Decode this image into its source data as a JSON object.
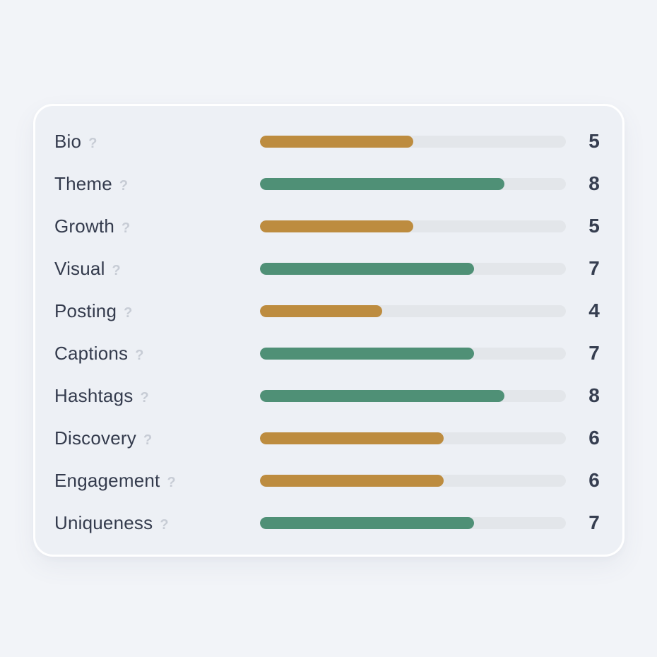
{
  "card": {
    "help_icon_glyph": "?",
    "max_score": 10,
    "rows": [
      {
        "label": "Bio",
        "score": "5",
        "value": 5,
        "status": "warn"
      },
      {
        "label": "Theme",
        "score": "8",
        "value": 8,
        "status": "good"
      },
      {
        "label": "Growth",
        "score": "5",
        "value": 5,
        "status": "warn"
      },
      {
        "label": "Visual",
        "score": "7",
        "value": 7,
        "status": "good"
      },
      {
        "label": "Posting",
        "score": "4",
        "value": 4,
        "status": "warn"
      },
      {
        "label": "Captions",
        "score": "7",
        "value": 7,
        "status": "good"
      },
      {
        "label": "Hashtags",
        "score": "8",
        "value": 8,
        "status": "good"
      },
      {
        "label": "Discovery",
        "score": "6",
        "value": 6,
        "status": "warn"
      },
      {
        "label": "Engagement",
        "score": "6",
        "value": 6,
        "status": "warn"
      },
      {
        "label": "Uniqueness",
        "score": "7",
        "value": 7,
        "status": "good"
      }
    ]
  },
  "colors": {
    "good": "#4F9076",
    "warn": "#BD8C3F",
    "track": "#E3E6EA",
    "label_text": "#343B4D",
    "score_text": "#363E50",
    "help_icon": "#C7CCD5",
    "page_background": "#F2F4F8",
    "card_background": "#EDF0F5",
    "card_border": "#FFFFFF"
  },
  "chart_data": {
    "type": "bar",
    "orientation": "horizontal",
    "title": "",
    "categories": [
      "Bio",
      "Theme",
      "Growth",
      "Visual",
      "Posting",
      "Captions",
      "Hashtags",
      "Discovery",
      "Engagement",
      "Uniqueness"
    ],
    "values": [
      5,
      8,
      5,
      7,
      4,
      7,
      8,
      6,
      6,
      7
    ],
    "value_range": [
      0,
      10
    ],
    "bar_color_rule": "amber (#BD8C3F) for scores <= 6, green (#4F9076) for scores >= 7",
    "bar_colors": [
      "#BD8C3F",
      "#4F9076",
      "#BD8C3F",
      "#4F9076",
      "#BD8C3F",
      "#4F9076",
      "#4F9076",
      "#BD8C3F",
      "#BD8C3F",
      "#4F9076"
    ],
    "grid": false,
    "legend": false,
    "data_labels_position": "right of each bar"
  }
}
